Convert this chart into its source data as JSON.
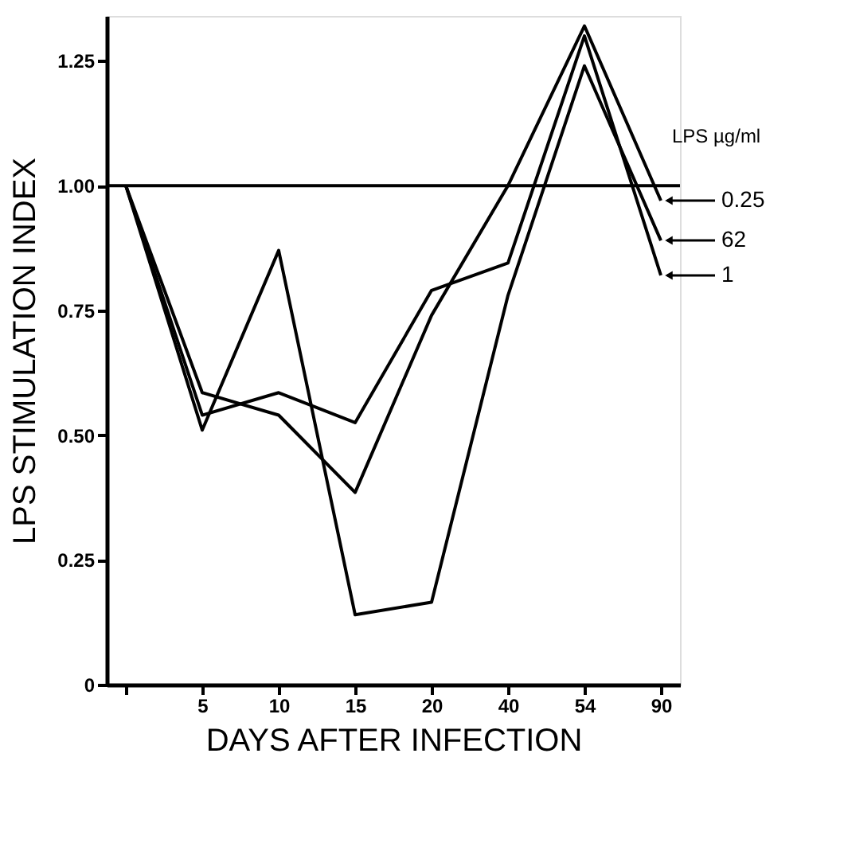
{
  "chart_data": {
    "type": "line",
    "xlabel": "DAYS  AFTER  INFECTION",
    "ylabel": "LPS  STIMULATION  INDEX",
    "legend_title": "LPS µg/ml",
    "categories": [
      null,
      "5",
      "10",
      "15",
      "20",
      "40",
      "54",
      "90"
    ],
    "series": [
      {
        "name": "0.25",
        "color": "#000000",
        "values": [
          1.0,
          0.585,
          0.54,
          0.385,
          0.74,
          1.0,
          1.32,
          0.97
        ]
      },
      {
        "name": "62",
        "color": "#000000",
        "values": [
          1.0,
          0.51,
          0.87,
          0.14,
          0.165,
          0.78,
          1.24,
          0.89
        ]
      },
      {
        "name": "1",
        "color": "#000000",
        "values": [
          1.0,
          0.54,
          0.585,
          0.525,
          0.79,
          0.845,
          1.3,
          0.82
        ]
      }
    ],
    "ylim": [
      0,
      1.34
    ],
    "yticks": [
      {
        "value": 0,
        "label": "0"
      },
      0.25,
      {
        "value": 0.5,
        "label": "0.50"
      },
      0.75,
      {
        "value": 1,
        "label": "1.00"
      },
      1.25
    ],
    "ref_lines": [
      {
        "axis": "y",
        "value": 1,
        "color": "#000000"
      }
    ],
    "legend": "right",
    "grid": false,
    "marker": "none",
    "line_style": "solid"
  }
}
